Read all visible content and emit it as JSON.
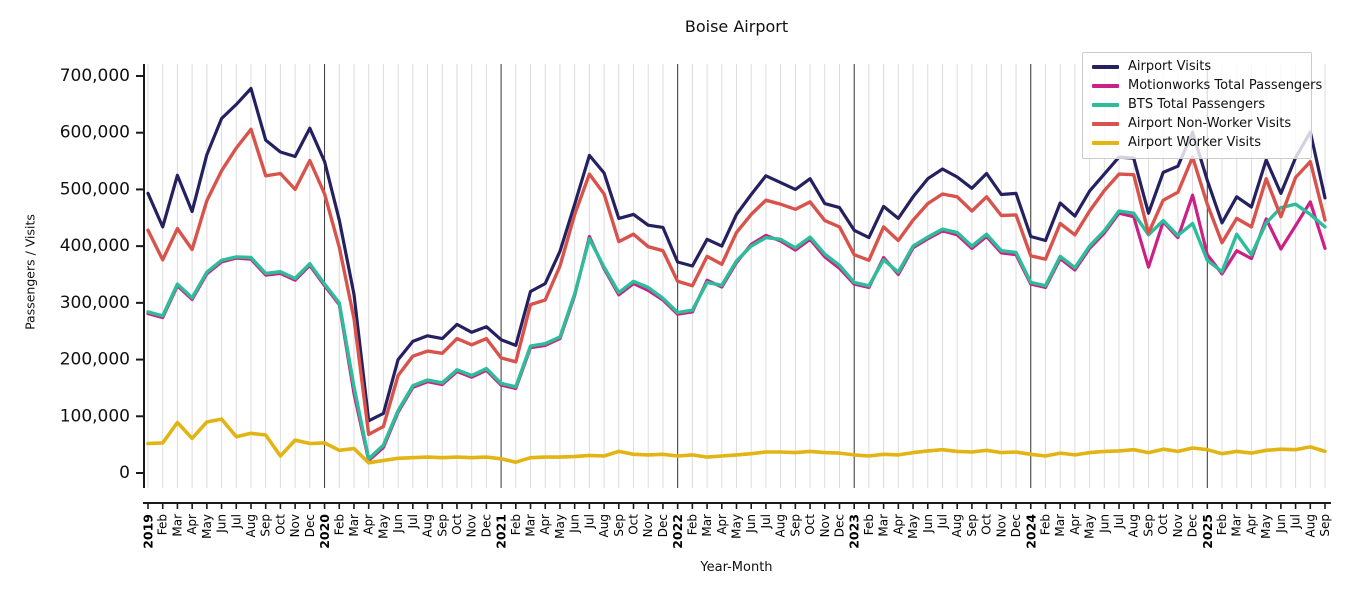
{
  "figure": {
    "title": "Boise Airport",
    "xlabel": "Year-Month",
    "ylabel": "Passengers / Visits"
  },
  "chart_data": {
    "type": "line",
    "title": "Boise Airport",
    "xlabel": "Year-Month",
    "ylabel": "Passengers / Visits",
    "ylim": [
      0,
      700000
    ],
    "yticks": [
      0,
      100000,
      200000,
      300000,
      400000,
      500000,
      600000,
      700000
    ],
    "grid": "vertical monthly gridlines, darker line at each January",
    "legend_position": "upper right, semi-transparent white box",
    "x_labels": [
      "2019",
      "Feb",
      "Mar",
      "Apr",
      "May",
      "Jun",
      "Jul",
      "Aug",
      "Sep",
      "Oct",
      "Nov",
      "Dec",
      "2020",
      "Feb",
      "Mar",
      "Apr",
      "May",
      "Jun",
      "Jul",
      "Aug",
      "Sep",
      "Oct",
      "Nov",
      "Dec",
      "2021",
      "Feb",
      "Mar",
      "Apr",
      "May",
      "Jun",
      "Jul",
      "Aug",
      "Sep",
      "Oct",
      "Nov",
      "Dec",
      "2022",
      "Feb",
      "Mar",
      "Apr",
      "May",
      "Jun",
      "Jul",
      "Aug",
      "Sep",
      "Oct",
      "Nov",
      "Dec",
      "2023",
      "Feb",
      "Mar",
      "Apr",
      "May",
      "Jun",
      "Jul",
      "Aug",
      "Sep",
      "Oct",
      "Nov",
      "Dec",
      "2024",
      "Feb",
      "Mar",
      "Apr",
      "May",
      "Jun",
      "Jul",
      "Aug",
      "Sep",
      "Oct",
      "Nov",
      "Dec",
      "2025",
      "Feb",
      "Mar",
      "Apr",
      "May",
      "Jun",
      "Jul",
      "Aug",
      "Sep"
    ],
    "year_line_indices": [
      12,
      24,
      36,
      48,
      60,
      72
    ],
    "bold_label_indices": [
      0,
      12,
      24,
      36,
      48,
      60,
      72
    ],
    "series": [
      {
        "name": "Airport Visits",
        "color": "#252160",
        "stroke_width": 3.2,
        "values": [
          493000,
          434000,
          525000,
          461000,
          561000,
          625000,
          650000,
          678000,
          587000,
          566000,
          558000,
          608000,
          549000,
          446000,
          315000,
          92000,
          105000,
          200000,
          232000,
          242000,
          237000,
          262000,
          248000,
          258000,
          235000,
          225000,
          320000,
          334000,
          391000,
          474000,
          560000,
          529000,
          449000,
          456000,
          437000,
          433000,
          372000,
          365000,
          412000,
          400000,
          456000,
          491000,
          524000,
          512000,
          500000,
          519000,
          475000,
          468000,
          428000,
          415000,
          470000,
          449000,
          487000,
          519000,
          536000,
          522000,
          502000,
          528000,
          491000,
          493000,
          417000,
          410000,
          476000,
          453000,
          497000,
          527000,
          557000,
          555000,
          458000,
          530000,
          541000,
          601000,
          516000,
          441000,
          487000,
          469000,
          552000,
          493000,
          556000,
          601000,
          485000
        ]
      },
      {
        "name": "Motionworks Total Passengers",
        "color": "#cb2086",
        "stroke_width": 3.2,
        "values": [
          281000,
          274000,
          330000,
          306000,
          351000,
          372000,
          379000,
          377000,
          349000,
          352000,
          340000,
          366000,
          330000,
          297000,
          140000,
          22000,
          45000,
          107000,
          151000,
          161000,
          156000,
          179000,
          169000,
          181000,
          155000,
          149000,
          221000,
          225000,
          237000,
          313000,
          417000,
          360000,
          314000,
          334000,
          322000,
          305000,
          280000,
          284000,
          340000,
          328000,
          371000,
          403000,
          419000,
          409000,
          393000,
          412000,
          381000,
          361000,
          333000,
          327000,
          380000,
          350000,
          397000,
          413000,
          427000,
          420000,
          396000,
          417000,
          388000,
          385000,
          333000,
          327000,
          378000,
          358000,
          396000,
          423000,
          458000,
          452000,
          363000,
          443000,
          415000,
          490000,
          385000,
          351000,
          392000,
          378000,
          448000,
          395000,
          436000,
          478000,
          396000
        ]
      },
      {
        "name": "BTS Total Passengers",
        "color": "#2dbd9b",
        "stroke_width": 3.4,
        "values": [
          284000,
          277000,
          333000,
          309000,
          354000,
          375000,
          381000,
          380000,
          352000,
          355000,
          343000,
          369000,
          333000,
          300000,
          152000,
          25000,
          49000,
          110000,
          154000,
          164000,
          159000,
          182000,
          172000,
          184000,
          158000,
          152000,
          224000,
          228000,
          240000,
          316000,
          413000,
          363000,
          318000,
          338000,
          327000,
          308000,
          283000,
          287000,
          336000,
          331000,
          374000,
          400000,
          415000,
          412000,
          397000,
          416000,
          386000,
          366000,
          336000,
          330000,
          376000,
          354000,
          400000,
          416000,
          430000,
          424000,
          400000,
          421000,
          392000,
          389000,
          336000,
          330000,
          382000,
          362000,
          400000,
          427000,
          462000,
          458000,
          420000,
          445000,
          419000,
          440000,
          375000,
          355000,
          421000,
          385000,
          441000,
          468000,
          474000,
          456000,
          434000
        ]
      },
      {
        "name": "Airport Non-Worker Visits",
        "color": "#d9534d",
        "stroke_width": 3.4,
        "values": [
          428000,
          376000,
          431000,
          394000,
          480000,
          533000,
          573000,
          606000,
          524000,
          528000,
          500000,
          551000,
          492000,
          398000,
          272000,
          68000,
          82000,
          172000,
          206000,
          215000,
          211000,
          237000,
          226000,
          237000,
          203000,
          196000,
          297000,
          305000,
          365000,
          456000,
          527000,
          492000,
          408000,
          421000,
          399000,
          392000,
          338000,
          330000,
          382000,
          368000,
          424000,
          456000,
          481000,
          474000,
          465000,
          478000,
          445000,
          434000,
          385000,
          375000,
          434000,
          410000,
          446000,
          475000,
          492000,
          487000,
          462000,
          487000,
          454000,
          455000,
          383000,
          377000,
          440000,
          420000,
          462000,
          498000,
          527000,
          526000,
          423000,
          481000,
          495000,
          557000,
          474000,
          406000,
          449000,
          434000,
          519000,
          452000,
          521000,
          549000,
          446000
        ]
      },
      {
        "name": "Airport Worker Visits",
        "color": "#e2b414",
        "stroke_width": 3.6,
        "values": [
          52000,
          53000,
          89000,
          61000,
          90000,
          95000,
          64000,
          70000,
          67000,
          30000,
          58000,
          52000,
          53000,
          40000,
          43000,
          18000,
          22000,
          26000,
          27000,
          28000,
          27000,
          28000,
          27000,
          28000,
          25000,
          19000,
          27000,
          28000,
          28000,
          29000,
          31000,
          30000,
          38000,
          33000,
          32000,
          33000,
          30000,
          32000,
          28000,
          30000,
          32000,
          34000,
          37000,
          37000,
          36000,
          38000,
          36000,
          35000,
          32000,
          30000,
          33000,
          32000,
          36000,
          39000,
          41000,
          38000,
          37000,
          40000,
          36000,
          37000,
          33000,
          30000,
          35000,
          32000,
          36000,
          38000,
          39000,
          41000,
          36000,
          42000,
          38000,
          44000,
          41000,
          34000,
          38000,
          35000,
          40000,
          42000,
          41000,
          46000,
          38000
        ]
      }
    ]
  }
}
